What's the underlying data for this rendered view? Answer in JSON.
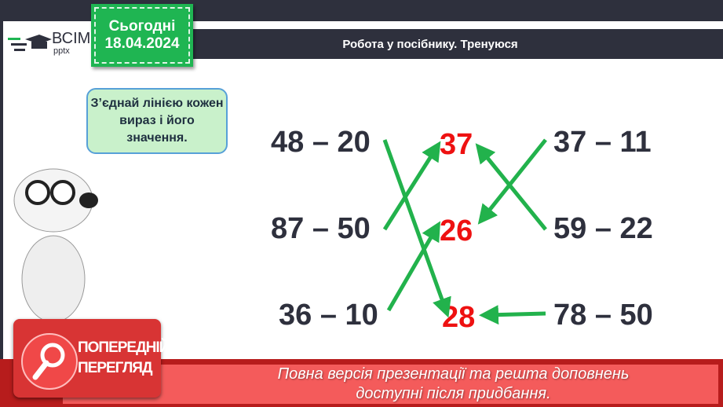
{
  "logo": {
    "line1": "ВСІМ",
    "line2": "pptx"
  },
  "date": {
    "label": "Сьогодні",
    "value": "18.04.2024"
  },
  "header": {
    "title": "Робота у посібнику. Тренуюся"
  },
  "bubble": {
    "text": "З’єднай лінією кожен вираз і його значення."
  },
  "left_expressions": [
    "48 – 20",
    "87 – 50",
    "36 – 10"
  ],
  "answers": [
    "37",
    "26",
    "28"
  ],
  "right_expressions": [
    "37 – 11",
    "59 – 22",
    "78 – 50"
  ],
  "colors": {
    "arrow": "#22b24c",
    "answer": "#ee1111",
    "banner": "#f45b5b"
  },
  "preview": {
    "label_line1": "ПОПЕРЕДНІЙ",
    "label_line2": "ПЕРЕГЛЯД",
    "icon": "magnifier-icon"
  },
  "banner": {
    "line1": "Повна версія презентації та решта доповнень",
    "line2": "доступні після придбання."
  }
}
